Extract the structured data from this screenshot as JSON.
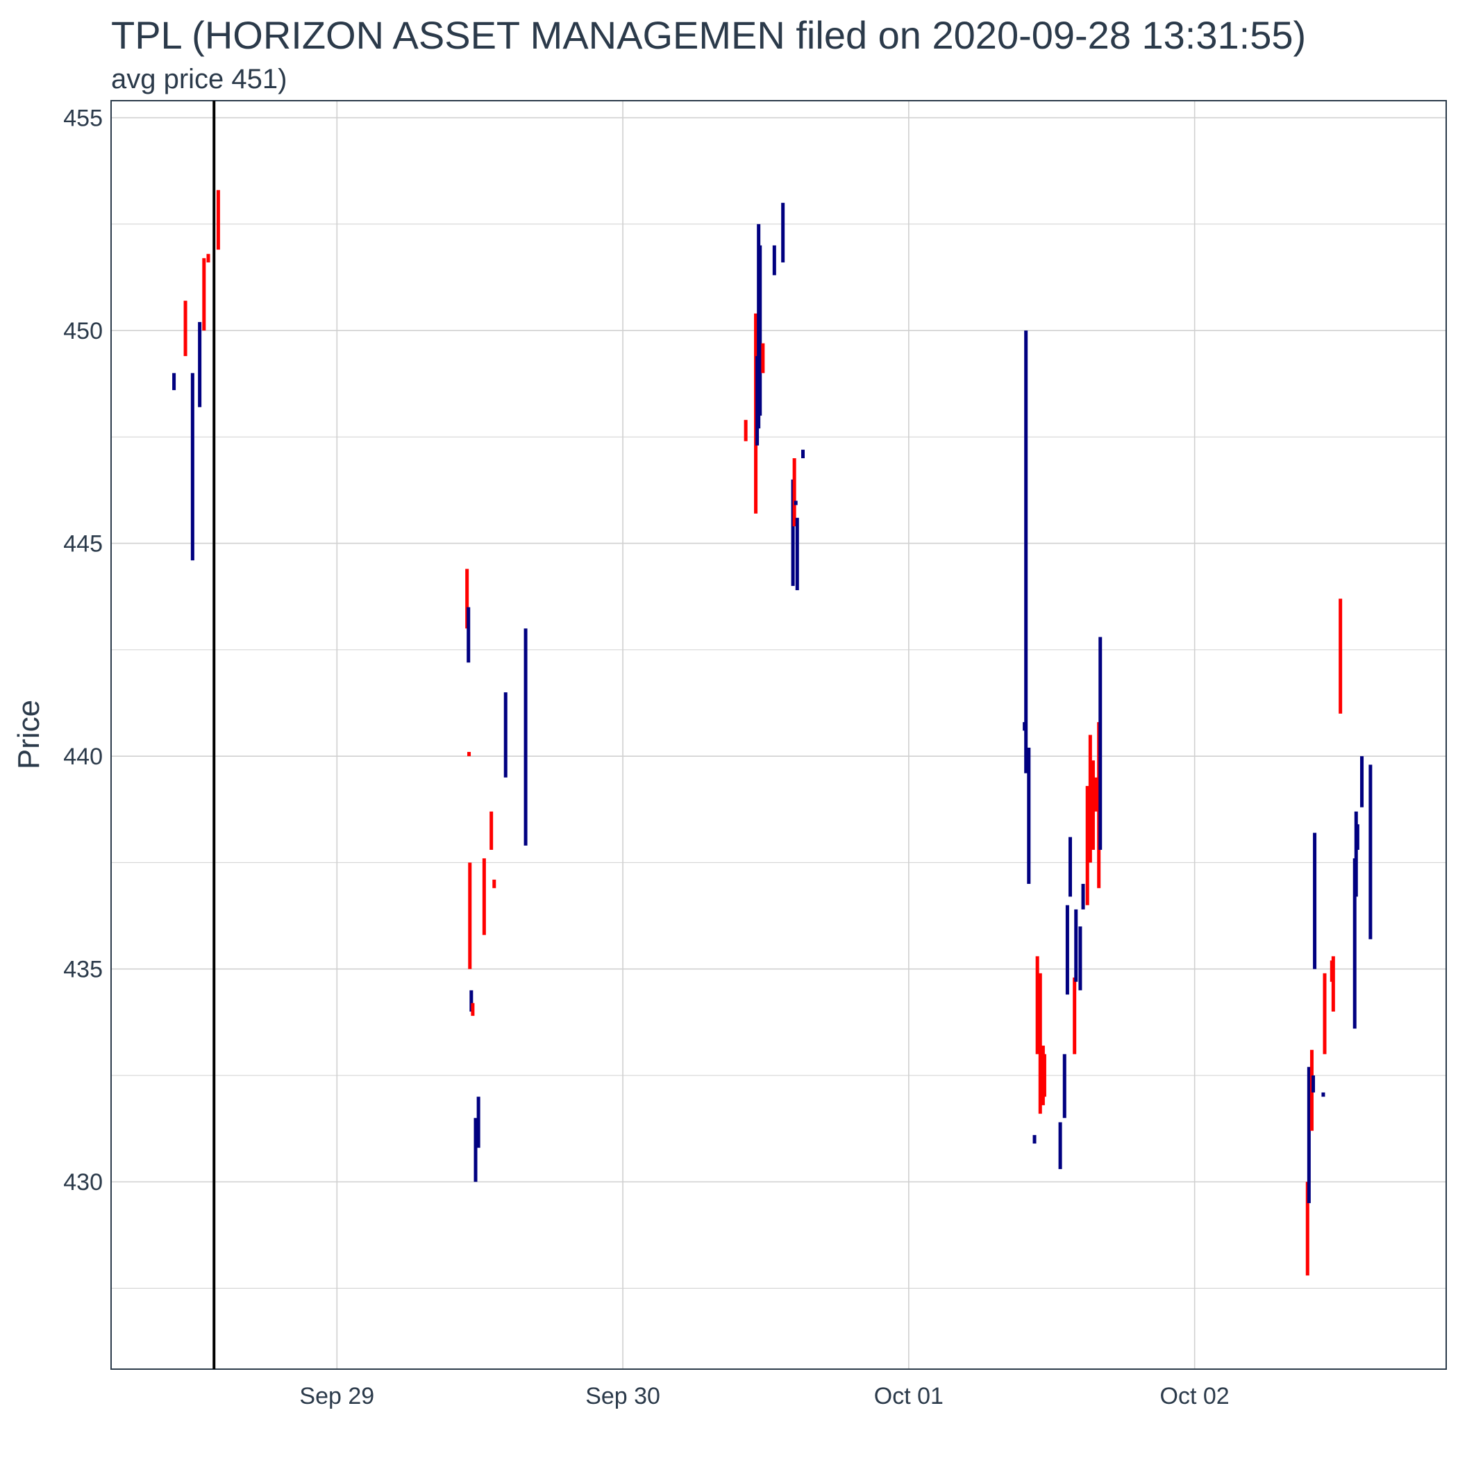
{
  "chart_data": {
    "type": "ohlc",
    "title": "TPL (HORIZON ASSET MANAGEMEN filed on 2020-09-28 13:31:55)",
    "subtitle": "avg price 451)",
    "xlabel": "",
    "ylabel": "Price",
    "x_ticks": [
      "Sep 29",
      "Sep 30",
      "Oct 01",
      "Oct 02"
    ],
    "y_ticks": [
      430,
      435,
      440,
      445,
      450,
      455
    ],
    "ylim": [
      425.6,
      455.4
    ],
    "xlim_days": [
      -0.79,
      3.88
    ],
    "grid": true,
    "legend": "none",
    "filing_marker_day": -0.43,
    "colors": {
      "up": "#000080",
      "down": "#ff0000",
      "marker": "#000000",
      "grid": "#d0d0d0",
      "border": "#2b3a4a"
    },
    "series": [
      {
        "d": -0.57,
        "lo": 448.6,
        "hi": 449.0,
        "dir": "up"
      },
      {
        "d": -0.53,
        "lo": 449.4,
        "hi": 450.7,
        "dir": "down"
      },
      {
        "d": -0.505,
        "lo": 444.6,
        "hi": 449.0,
        "dir": "up"
      },
      {
        "d": -0.48,
        "lo": 448.2,
        "hi": 450.2,
        "dir": "up"
      },
      {
        "d": -0.465,
        "lo": 450.0,
        "hi": 451.7,
        "dir": "down"
      },
      {
        "d": -0.45,
        "lo": 451.6,
        "hi": 451.8,
        "dir": "down"
      },
      {
        "d": -0.415,
        "lo": 451.9,
        "hi": 453.3,
        "dir": "down"
      },
      {
        "d": 0.455,
        "lo": 443.0,
        "hi": 444.4,
        "dir": "down"
      },
      {
        "d": 0.46,
        "lo": 442.2,
        "hi": 443.5,
        "dir": "up"
      },
      {
        "d": 0.462,
        "lo": 440.0,
        "hi": 440.1,
        "dir": "down"
      },
      {
        "d": 0.465,
        "lo": 435.0,
        "hi": 437.5,
        "dir": "down"
      },
      {
        "d": 0.47,
        "lo": 434.0,
        "hi": 434.5,
        "dir": "up"
      },
      {
        "d": 0.475,
        "lo": 433.9,
        "hi": 434.2,
        "dir": "down"
      },
      {
        "d": 0.485,
        "lo": 430.0,
        "hi": 431.5,
        "dir": "up"
      },
      {
        "d": 0.495,
        "lo": 430.8,
        "hi": 432.0,
        "dir": "up"
      },
      {
        "d": 0.515,
        "lo": 435.8,
        "hi": 437.6,
        "dir": "down"
      },
      {
        "d": 0.54,
        "lo": 437.8,
        "hi": 438.7,
        "dir": "down"
      },
      {
        "d": 0.55,
        "lo": 436.9,
        "hi": 437.1,
        "dir": "down"
      },
      {
        "d": 0.59,
        "lo": 439.5,
        "hi": 441.5,
        "dir": "up"
      },
      {
        "d": 0.66,
        "lo": 437.9,
        "hi": 443.0,
        "dir": "up"
      },
      {
        "d": 1.43,
        "lo": 447.4,
        "hi": 447.9,
        "dir": "down"
      },
      {
        "d": 1.465,
        "lo": 445.7,
        "hi": 450.4,
        "dir": "down"
      },
      {
        "d": 1.47,
        "lo": 447.3,
        "hi": 449.4,
        "dir": "up"
      },
      {
        "d": 1.475,
        "lo": 447.7,
        "hi": 452.5,
        "dir": "up"
      },
      {
        "d": 1.48,
        "lo": 448.0,
        "hi": 452.0,
        "dir": "up"
      },
      {
        "d": 1.49,
        "lo": 449.0,
        "hi": 449.7,
        "dir": "down"
      },
      {
        "d": 1.53,
        "lo": 451.3,
        "hi": 452.0,
        "dir": "up"
      },
      {
        "d": 1.56,
        "lo": 451.6,
        "hi": 453.0,
        "dir": "up"
      },
      {
        "d": 1.595,
        "lo": 444.0,
        "hi": 446.5,
        "dir": "up"
      },
      {
        "d": 1.6,
        "lo": 445.4,
        "hi": 447.0,
        "dir": "down"
      },
      {
        "d": 1.605,
        "lo": 445.9,
        "hi": 446.0,
        "dir": "up"
      },
      {
        "d": 1.61,
        "lo": 443.9,
        "hi": 445.6,
        "dir": "up"
      },
      {
        "d": 1.63,
        "lo": 447.0,
        "hi": 447.2,
        "dir": "up"
      },
      {
        "d": 2.405,
        "lo": 440.6,
        "hi": 440.8,
        "dir": "up"
      },
      {
        "d": 2.41,
        "lo": 439.6,
        "hi": 450.0,
        "dir": "up"
      },
      {
        "d": 2.42,
        "lo": 437.0,
        "hi": 440.2,
        "dir": "up"
      },
      {
        "d": 2.44,
        "lo": 430.9,
        "hi": 431.1,
        "dir": "up"
      },
      {
        "d": 2.45,
        "lo": 433.0,
        "hi": 435.3,
        "dir": "down"
      },
      {
        "d": 2.46,
        "lo": 431.6,
        "hi": 434.9,
        "dir": "down"
      },
      {
        "d": 2.47,
        "lo": 431.8,
        "hi": 433.2,
        "dir": "down"
      },
      {
        "d": 2.475,
        "lo": 432.0,
        "hi": 433.0,
        "dir": "down"
      },
      {
        "d": 2.53,
        "lo": 430.3,
        "hi": 431.4,
        "dir": "up"
      },
      {
        "d": 2.545,
        "lo": 431.5,
        "hi": 433.0,
        "dir": "up"
      },
      {
        "d": 2.555,
        "lo": 434.4,
        "hi": 436.5,
        "dir": "up"
      },
      {
        "d": 2.565,
        "lo": 436.7,
        "hi": 438.1,
        "dir": "up"
      },
      {
        "d": 2.58,
        "lo": 433.0,
        "hi": 434.8,
        "dir": "down"
      },
      {
        "d": 2.585,
        "lo": 434.7,
        "hi": 436.4,
        "dir": "up"
      },
      {
        "d": 2.6,
        "lo": 434.5,
        "hi": 436.0,
        "dir": "up"
      },
      {
        "d": 2.61,
        "lo": 436.4,
        "hi": 437.0,
        "dir": "up"
      },
      {
        "d": 2.625,
        "lo": 436.5,
        "hi": 439.3,
        "dir": "down"
      },
      {
        "d": 2.635,
        "lo": 437.5,
        "hi": 440.5,
        "dir": "down"
      },
      {
        "d": 2.645,
        "lo": 437.8,
        "hi": 439.9,
        "dir": "down"
      },
      {
        "d": 2.655,
        "lo": 438.7,
        "hi": 439.5,
        "dir": "down"
      },
      {
        "d": 2.665,
        "lo": 436.9,
        "hi": 440.8,
        "dir": "down"
      },
      {
        "d": 2.67,
        "lo": 437.8,
        "hi": 442.8,
        "dir": "up"
      },
      {
        "d": 3.395,
        "lo": 427.8,
        "hi": 430.0,
        "dir": "down"
      },
      {
        "d": 3.4,
        "lo": 429.5,
        "hi": 432.7,
        "dir": "up"
      },
      {
        "d": 3.41,
        "lo": 431.2,
        "hi": 433.1,
        "dir": "down"
      },
      {
        "d": 3.415,
        "lo": 432.1,
        "hi": 432.5,
        "dir": "up"
      },
      {
        "d": 3.42,
        "lo": 435.0,
        "hi": 438.2,
        "dir": "up"
      },
      {
        "d": 3.45,
        "lo": 432.0,
        "hi": 432.1,
        "dir": "up"
      },
      {
        "d": 3.455,
        "lo": 433.0,
        "hi": 434.9,
        "dir": "down"
      },
      {
        "d": 3.48,
        "lo": 434.7,
        "hi": 435.2,
        "dir": "down"
      },
      {
        "d": 3.485,
        "lo": 434.0,
        "hi": 435.3,
        "dir": "down"
      },
      {
        "d": 3.51,
        "lo": 441.0,
        "hi": 443.7,
        "dir": "down"
      },
      {
        "d": 3.56,
        "lo": 433.6,
        "hi": 437.6,
        "dir": "up"
      },
      {
        "d": 3.565,
        "lo": 436.7,
        "hi": 438.7,
        "dir": "up"
      },
      {
        "d": 3.57,
        "lo": 437.8,
        "hi": 438.4,
        "dir": "up"
      },
      {
        "d": 3.585,
        "lo": 438.8,
        "hi": 440.0,
        "dir": "up"
      },
      {
        "d": 3.615,
        "lo": 435.7,
        "hi": 439.8,
        "dir": "up"
      }
    ]
  }
}
